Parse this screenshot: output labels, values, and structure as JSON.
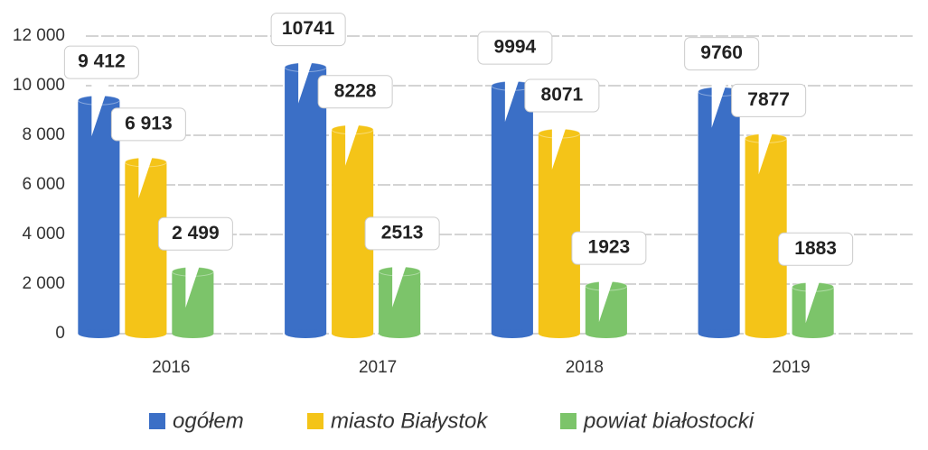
{
  "chart_data": {
    "type": "bar",
    "categories": [
      "2016",
      "2017",
      "2018",
      "2019"
    ],
    "series": [
      {
        "name": "ogółem",
        "color": "#3b6fc6",
        "values": [
          9412,
          10741,
          9994,
          9760
        ],
        "value_labels": [
          "9 412",
          "10741",
          "9994",
          "9760"
        ]
      },
      {
        "name": "miasto Białystok",
        "color": "#f4c418",
        "values": [
          6913,
          8228,
          8071,
          7877
        ],
        "value_labels": [
          "6 913",
          "8228",
          "8071",
          "7877"
        ]
      },
      {
        "name": "powiat białostocki",
        "color": "#7cc46a",
        "values": [
          2499,
          2513,
          1923,
          1883
        ],
        "value_labels": [
          "2 499",
          "2513",
          "1923",
          "1883"
        ]
      }
    ],
    "ylim": [
      0,
      12000
    ],
    "yticks": [
      0,
      {
        "value": 2000,
        "label": "2 000"
      },
      {
        "value": 4000,
        "label": "4 000"
      },
      {
        "value": 6000,
        "label": "6 000"
      },
      {
        "value": 8000,
        "label": "8 000"
      },
      {
        "value": 10000,
        "label": "10 000"
      },
      {
        "value": 12000,
        "label": "12 000"
      }
    ],
    "grid": true,
    "legend": "bottom"
  }
}
